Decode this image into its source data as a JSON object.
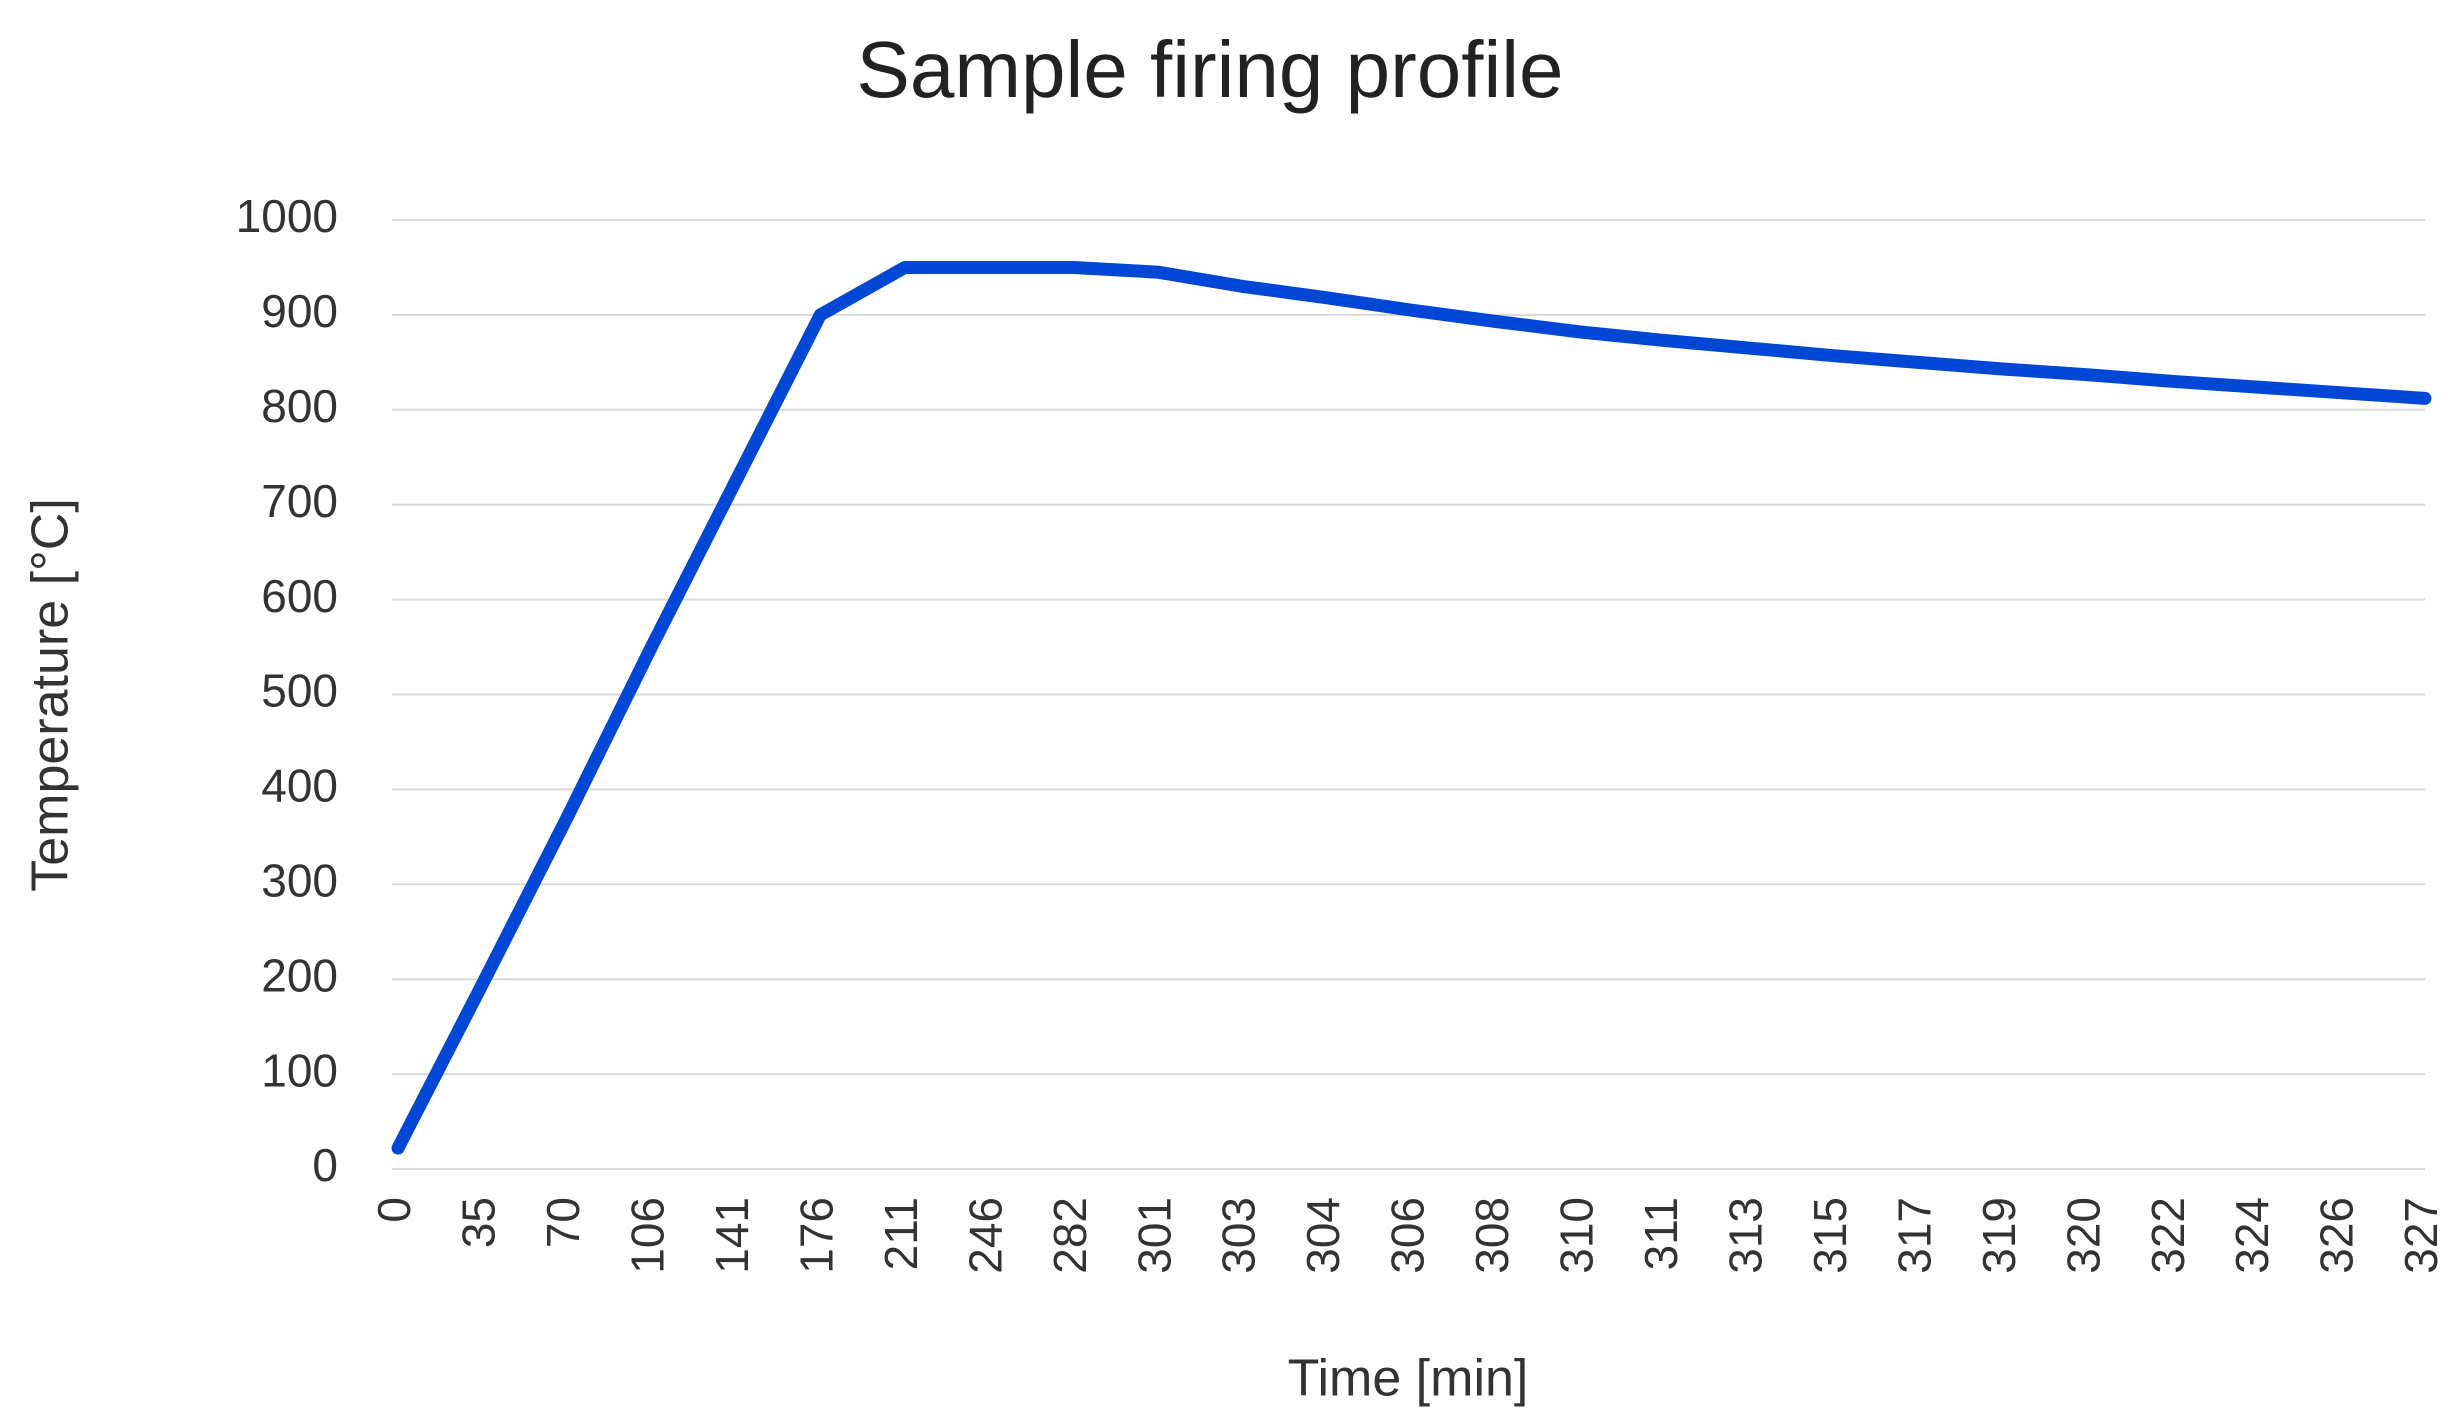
{
  "chart_data": {
    "type": "line",
    "title": "Sample firing profile",
    "x_label": "Time [min]",
    "y_label": "Temperature [°C]",
    "categories": [
      "0",
      "35",
      "70",
      "106",
      "141",
      "176",
      "211",
      "246",
      "282",
      "301",
      "303",
      "304",
      "306",
      "308",
      "310",
      "311",
      "313",
      "315",
      "317",
      "319",
      "320",
      "322",
      "324",
      "326",
      "327"
    ],
    "values": [
      22,
      195,
      370,
      550,
      725,
      900,
      950,
      950,
      950,
      945,
      930,
      918,
      905,
      893,
      882,
      873,
      865,
      857,
      850,
      843,
      837,
      830,
      824,
      818,
      812
    ],
    "color": "#0047d6",
    "ylim": [
      0,
      1000
    ],
    "yticks": [
      0,
      100,
      200,
      300,
      400,
      500,
      600,
      700,
      800,
      900,
      1000
    ],
    "grid": true
  }
}
